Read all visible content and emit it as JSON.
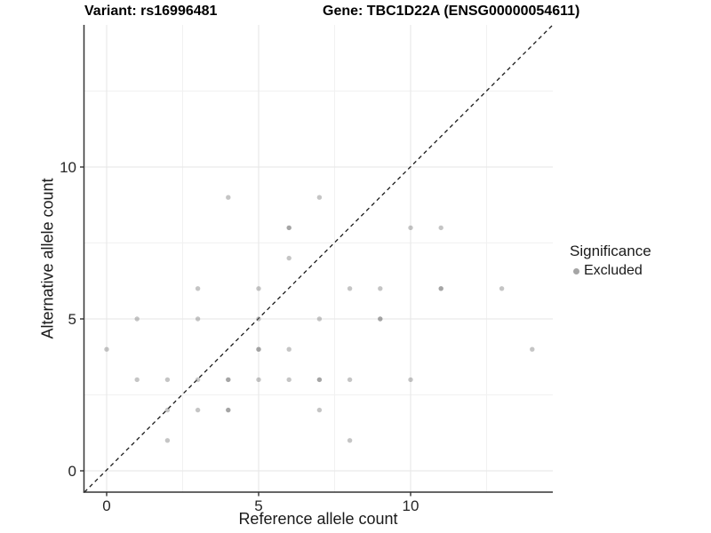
{
  "header": {
    "variant_title": "Variant: rs16996481",
    "gene_title": "Gene: TBC1D22A (ENSG00000054611)"
  },
  "chart_data": {
    "type": "scatter",
    "xlabel": "Reference allele count",
    "ylabel": "Alternative allele count",
    "x_ticks": [
      0,
      5,
      10
    ],
    "y_ticks": [
      0,
      5,
      10
    ],
    "x_tick_labels": [
      "0",
      "5",
      "10"
    ],
    "y_tick_labels": [
      "0",
      "5",
      "10"
    ],
    "minor_breaks": [
      2.5,
      7.5,
      12.5
    ],
    "x_range": [
      -0.73,
      14.68
    ],
    "y_range": [
      -0.7,
      14.68
    ],
    "grid": "major+minor, light grey on white",
    "reference_line": {
      "equation": "y = x",
      "style": "dashed",
      "color": "#1a1a1a"
    },
    "points": [
      [
        0,
        4
      ],
      [
        1,
        3
      ],
      [
        1,
        5
      ],
      [
        2,
        1
      ],
      [
        2,
        2
      ],
      [
        2,
        3
      ],
      [
        3,
        2
      ],
      [
        3,
        3
      ],
      [
        3,
        5
      ],
      [
        3,
        6
      ],
      [
        4,
        2
      ],
      [
        4,
        2
      ],
      [
        4,
        3
      ],
      [
        4,
        3
      ],
      [
        4,
        9
      ],
      [
        5,
        3
      ],
      [
        5,
        4
      ],
      [
        5,
        4
      ],
      [
        5,
        5
      ],
      [
        5,
        6
      ],
      [
        6,
        3
      ],
      [
        6,
        4
      ],
      [
        6,
        7
      ],
      [
        6,
        8
      ],
      [
        6,
        8
      ],
      [
        7,
        2
      ],
      [
        7,
        3
      ],
      [
        7,
        3
      ],
      [
        7,
        5
      ],
      [
        7,
        9
      ],
      [
        8,
        1
      ],
      [
        8,
        3
      ],
      [
        8,
        6
      ],
      [
        9,
        5
      ],
      [
        9,
        5
      ],
      [
        9,
        6
      ],
      [
        10,
        3
      ],
      [
        10,
        8
      ],
      [
        11,
        6
      ],
      [
        11,
        6
      ],
      [
        11,
        8
      ],
      [
        13,
        6
      ],
      [
        14,
        4
      ]
    ],
    "point_color": "rgba(127,127,127,0.45)",
    "colors": {
      "grid_major": "#e6e6e6",
      "grid_minor": "#f1f1f1",
      "axis_line": "#333333",
      "tick_label": "#262626"
    },
    "legend": {
      "title": "Significance",
      "position": "right",
      "items": [
        {
          "label": "Excluded",
          "color": "rgba(127,127,127,0.7)"
        }
      ]
    }
  }
}
